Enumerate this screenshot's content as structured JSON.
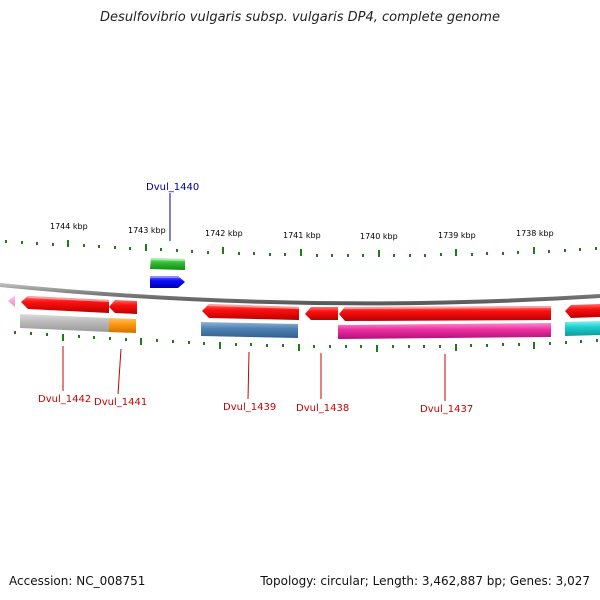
{
  "title": "Desulfovibrio vulgaris subsp. vulgaris DP4, complete genome",
  "footer": {
    "accession": "Accession: NC_008751",
    "summary": "Topology: circular; Length: 3,462,887 bp; Genes: 3,027"
  },
  "colors": {
    "backbone": "#7a7a7a",
    "tick": "#1f7a1f",
    "label_forward": "#00008b",
    "label_reverse": "#cc0000"
  },
  "ticks": [
    {
      "label": "1744 kbp"
    },
    {
      "label": "1743 kbp"
    },
    {
      "label": "1742 kbp"
    },
    {
      "label": "1741 kbp"
    },
    {
      "label": "1740 kbp"
    },
    {
      "label": "1739 kbp"
    },
    {
      "label": "1738 kbp"
    }
  ],
  "genes": [
    {
      "label": "Dvul_1440",
      "strand": "forward"
    },
    {
      "label": "Dvul_1442",
      "strand": "reverse"
    },
    {
      "label": "Dvul_1441",
      "strand": "reverse"
    },
    {
      "label": "Dvul_1439",
      "strand": "reverse"
    },
    {
      "label": "Dvul_1438",
      "strand": "reverse"
    },
    {
      "label": "Dvul_1437",
      "strand": "reverse"
    }
  ]
}
